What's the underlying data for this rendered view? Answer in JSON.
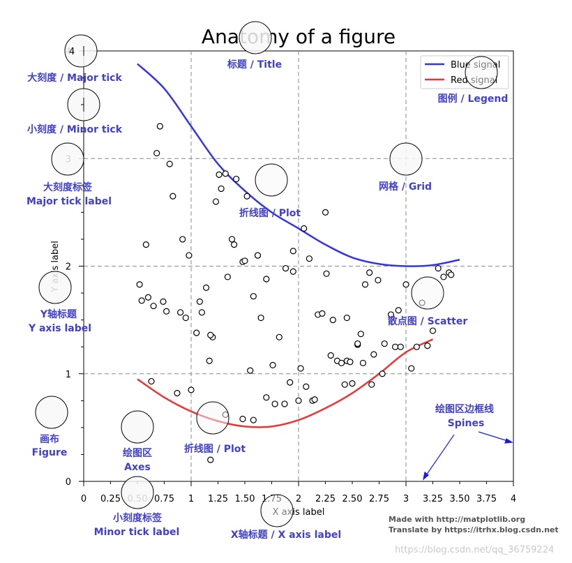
{
  "chart_data": {
    "type": "line",
    "title": "Anatomy of a figure",
    "xlabel": "X axis label",
    "ylabel": "Y axis label",
    "xlim": [
      0,
      4
    ],
    "ylim": [
      0,
      4
    ],
    "x_major_ticks": [
      0,
      1,
      2,
      3,
      4
    ],
    "x_minor_ticks": [
      0.25,
      0.5,
      0.75,
      1.25,
      1.5,
      1.75,
      2.25,
      2.5,
      2.75,
      3.25,
      3.5,
      3.75
    ],
    "x_tick_labels": [
      "0",
      "0.25",
      "0.50",
      "0.75",
      "1",
      "1.25",
      "1.50",
      "1.75",
      "2",
      "2.25",
      "2.50",
      "2.75",
      "3",
      "3.25",
      "3.50",
      "3.75",
      "4"
    ],
    "y_major_ticks": [
      0,
      1,
      2,
      3,
      4
    ],
    "y_tick_labels": [
      "0",
      "1",
      "2",
      "3",
      "4"
    ],
    "grid": true,
    "legend_position": "top-right",
    "series": [
      {
        "name": "Blue signal",
        "color": "#3333ee",
        "x": [
          0.5,
          0.75,
          1.0,
          1.25,
          1.5,
          1.75,
          2.0,
          2.25,
          2.5,
          2.75,
          3.0,
          3.25,
          3.5
        ],
        "y": [
          3.88,
          3.65,
          3.3,
          2.95,
          2.7,
          2.5,
          2.35,
          2.2,
          2.08,
          2.02,
          2.0,
          2.01,
          2.06
        ]
      },
      {
        "name": "Red signal",
        "color": "#ee3333",
        "x": [
          0.5,
          0.75,
          1.0,
          1.25,
          1.5,
          1.75,
          2.0,
          2.25,
          2.5,
          2.75,
          3.0,
          3.25
        ],
        "y": [
          0.95,
          0.78,
          0.65,
          0.56,
          0.51,
          0.51,
          0.57,
          0.68,
          0.82,
          1.0,
          1.2,
          1.32
        ]
      }
    ],
    "scatter": {
      "name": "Scatter",
      "x": [
        0.71,
        0.68,
        0.8,
        0.83,
        0.92,
        0.98,
        0.58,
        0.52,
        0.54,
        0.6,
        0.65,
        0.74,
        0.77,
        0.9,
        0.95,
        1.05,
        1.08,
        1.1,
        1.14,
        1.17,
        1.2,
        1.23,
        1.26,
        1.28,
        1.32,
        1.34,
        1.38,
        1.4,
        1.42,
        1.48,
        1.5,
        1.55,
        1.58,
        1.62,
        1.65,
        1.7,
        1.76,
        1.82,
        1.88,
        1.92,
        1.95,
        2.02,
        2.05,
        2.1,
        2.13,
        2.18,
        2.22,
        2.26,
        2.3,
        2.32,
        2.36,
        2.4,
        2.45,
        2.48,
        2.5,
        2.55,
        2.58,
        2.6,
        2.62,
        2.66,
        2.7,
        2.74,
        2.8,
        2.86,
        2.9,
        2.93,
        3.0,
        3.1,
        3.15,
        3.2,
        3.25,
        3.3,
        3.35,
        3.4,
        3.42,
        1.0,
        1.18,
        0.63,
        0.87,
        1.58,
        1.32,
        1.18,
        1.7,
        1.78,
        1.87,
        2.0,
        2.07,
        2.15,
        2.43,
        2.55,
        2.68,
        2.78,
        2.95,
        3.05,
        1.48,
        1.95,
        2.45,
        2.25,
        1.52,
        1.62
      ],
      "y": [
        3.3,
        3.05,
        2.95,
        2.65,
        2.25,
        2.1,
        2.2,
        1.83,
        1.68,
        1.71,
        1.63,
        1.67,
        1.58,
        1.57,
        1.52,
        1.38,
        1.67,
        1.57,
        1.8,
        1.12,
        1.34,
        2.6,
        2.85,
        2.72,
        2.86,
        1.9,
        2.25,
        2.2,
        2.81,
        2.04,
        2.05,
        1.03,
        1.72,
        2.1,
        1.52,
        1.88,
        1.08,
        1.34,
        1.98,
        0.92,
        2.14,
        1.05,
        2.35,
        2.07,
        0.75,
        1.55,
        1.56,
        1.93,
        1.17,
        1.5,
        1.12,
        1.1,
        1.12,
        1.11,
        0.91,
        1.27,
        1.37,
        1.1,
        1.83,
        1.94,
        1.18,
        1.87,
        1.28,
        1.55,
        1.25,
        1.59,
        1.83,
        1.25,
        1.66,
        1.26,
        1.4,
        1.98,
        1.9,
        1.94,
        1.92,
        0.85,
        1.36,
        0.93,
        0.82,
        0.57,
        0.62,
        0.2,
        0.78,
        0.72,
        0.72,
        0.75,
        0.88,
        0.76,
        0.9,
        1.28,
        0.9,
        1.0,
        1.25,
        1.05,
        0.58,
        1.95,
        1.52,
        2.5,
        2.65,
        2.1
      ]
    }
  },
  "legend": {
    "items": [
      {
        "label": "Blue signal",
        "color": "#3333ee"
      },
      {
        "label": "Red signal",
        "color": "#ee3333"
      }
    ]
  },
  "annotations": {
    "title": "标题 / Title",
    "major_tick": "大刻度 / Major tick",
    "minor_tick": "小刻度 / Minor tick",
    "major_tick_label_cn": "大刻度标签",
    "major_tick_label_en": "Major tick label",
    "y_axis_label_cn": "Y轴标题",
    "y_axis_label_en": "Y axis label",
    "figure_cn": "画布",
    "figure_en": "Figure",
    "axes_cn": "绘图区",
    "axes_en": "Axes",
    "plot_line_upper": "折线图 / Plot",
    "plot_line_lower": "折线图 / Plot",
    "minor_tick_label_cn": "小刻度标签",
    "minor_tick_label_en": "Minor tick label",
    "x_axis_label": "X轴标题 / X axis label",
    "legend": "图例 / Legend",
    "grid": "网格 / Grid",
    "scatter": "散点图 / Scatter",
    "spines_cn": "绘图区边框线",
    "spines_en": "Spines"
  },
  "credits": {
    "line1": "Made with http://matplotlib.org",
    "line2": "Translate by https://itrhx.blog.csdn.net",
    "watermark": "https://blog.csdn.net/qq_36759224"
  },
  "colors": {
    "annotation": "#4040cc",
    "blue_line": "#3333ee",
    "red_line": "#ee3333"
  }
}
